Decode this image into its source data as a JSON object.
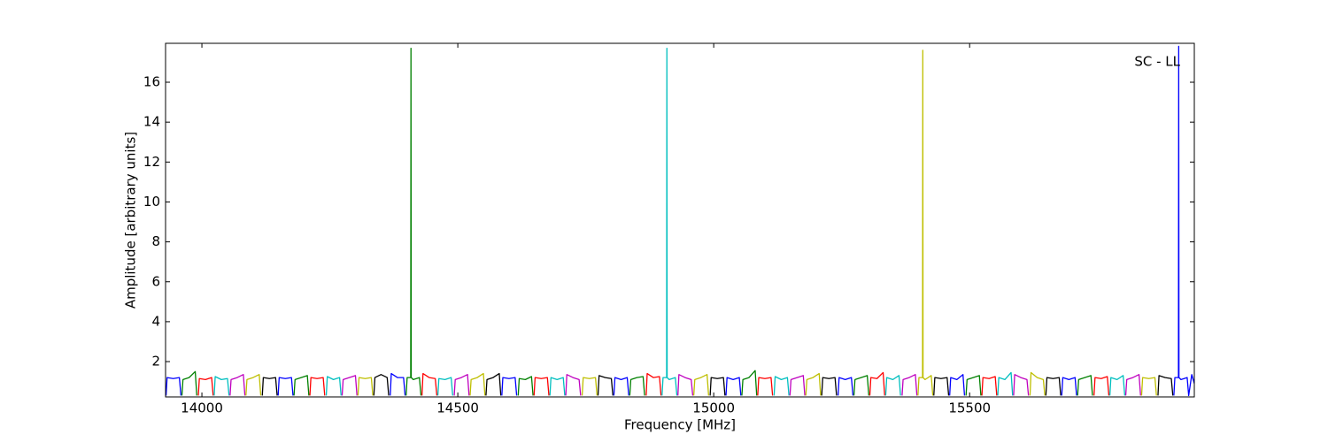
{
  "chart_data": {
    "type": "line",
    "xlabel": "Frequency [MHz]",
    "ylabel": "Amplitude [arbitrary units]",
    "annotation": "SC - LL",
    "xlim": [
      13929,
      15939
    ],
    "ylim": [
      0.23,
      17.95
    ],
    "xticks": [
      14000,
      14500,
      15000,
      15500
    ],
    "yticks": [
      2,
      4,
      6,
      8,
      10,
      12,
      14,
      16
    ],
    "grid": false,
    "series": [
      {
        "color": "#0000ff",
        "x": [
          13930,
          13932,
          13944,
          13956,
          13959
        ],
        "values": [
          0.3,
          1.2,
          1.15,
          1.2,
          0.3
        ]
      },
      {
        "color": "#008000",
        "x": [
          13961,
          13963,
          13975,
          13987,
          13990
        ],
        "values": [
          0.3,
          1.1,
          1.2,
          1.5,
          0.3
        ]
      },
      {
        "color": "#ff0000",
        "x": [
          13993,
          13995,
          14007,
          14019,
          14022
        ],
        "values": [
          0.3,
          1.15,
          1.1,
          1.2,
          0.3
        ]
      },
      {
        "color": "#00bfbf",
        "x": [
          14024,
          14026,
          14038,
          14050,
          14053
        ],
        "values": [
          0.3,
          1.25,
          1.1,
          1.15,
          0.3
        ]
      },
      {
        "color": "#bf00bf",
        "x": [
          14055,
          14057,
          14069,
          14081,
          14084
        ],
        "values": [
          0.3,
          1.1,
          1.2,
          1.35,
          0.3
        ]
      },
      {
        "color": "#bfbf00",
        "x": [
          14086,
          14088,
          14100,
          14112,
          14115
        ],
        "values": [
          0.3,
          1.1,
          1.2,
          1.35,
          0.3
        ]
      },
      {
        "color": "#000000",
        "x": [
          14118,
          14120,
          14132,
          14144,
          14147
        ],
        "values": [
          0.3,
          1.2,
          1.15,
          1.2,
          0.3
        ]
      },
      {
        "color": "#0000ff",
        "x": [
          14149,
          14151,
          14163,
          14175,
          14178
        ],
        "values": [
          0.3,
          1.2,
          1.15,
          1.2,
          0.3
        ]
      },
      {
        "color": "#008000",
        "x": [
          14180,
          14182,
          14194,
          14206,
          14209
        ],
        "values": [
          0.3,
          1.1,
          1.2,
          1.3,
          0.3
        ]
      },
      {
        "color": "#ff0000",
        "x": [
          14211,
          14213,
          14225,
          14237,
          14240
        ],
        "values": [
          0.3,
          1.2,
          1.15,
          1.2,
          0.3
        ]
      },
      {
        "color": "#00bfbf",
        "x": [
          14243,
          14245,
          14257,
          14269,
          14272
        ],
        "values": [
          0.3,
          1.25,
          1.1,
          1.2,
          0.3
        ]
      },
      {
        "color": "#bf00bf",
        "x": [
          14274,
          14276,
          14288,
          14300,
          14303
        ],
        "values": [
          0.3,
          1.1,
          1.2,
          1.3,
          0.3
        ]
      },
      {
        "color": "#bfbf00",
        "x": [
          14305,
          14307,
          14319,
          14331,
          14334
        ],
        "values": [
          0.3,
          1.2,
          1.15,
          1.2,
          0.3
        ]
      },
      {
        "color": "#000000",
        "x": [
          14336,
          14338,
          14350,
          14362,
          14365
        ],
        "values": [
          0.3,
          1.2,
          1.35,
          1.2,
          0.3
        ]
      },
      {
        "color": "#0000ff",
        "x": [
          14368,
          14370,
          14382,
          14394,
          14397
        ],
        "values": [
          0.3,
          1.4,
          1.2,
          1.2,
          0.3
        ]
      },
      {
        "color": "#008000",
        "x": [
          14399,
          14401,
          14408,
          14408.5,
          14409,
          14413,
          14425,
          14428
        ],
        "values": [
          0.3,
          1.2,
          1.2,
          17.7,
          1.2,
          1.1,
          1.2,
          0.3
        ]
      },
      {
        "color": "#ff0000",
        "x": [
          14430,
          14432,
          14444,
          14456,
          14459
        ],
        "values": [
          0.3,
          1.4,
          1.2,
          1.15,
          0.3
        ]
      },
      {
        "color": "#00bfbf",
        "x": [
          14461,
          14463,
          14475,
          14487,
          14490
        ],
        "values": [
          0.3,
          1.15,
          1.1,
          1.2,
          0.3
        ]
      },
      {
        "color": "#bf00bf",
        "x": [
          14493,
          14495,
          14507,
          14519,
          14522
        ],
        "values": [
          0.3,
          1.1,
          1.2,
          1.35,
          0.3
        ]
      },
      {
        "color": "#bfbf00",
        "x": [
          14524,
          14526,
          14538,
          14550,
          14553
        ],
        "values": [
          0.3,
          1.1,
          1.2,
          1.4,
          0.3
        ]
      },
      {
        "color": "#000000",
        "x": [
          14555,
          14557,
          14569,
          14581,
          14584
        ],
        "values": [
          0.3,
          1.1,
          1.2,
          1.4,
          0.3
        ]
      },
      {
        "color": "#0000ff",
        "x": [
          14586,
          14588,
          14600,
          14612,
          14615
        ],
        "values": [
          0.3,
          1.2,
          1.15,
          1.2,
          0.3
        ]
      },
      {
        "color": "#008000",
        "x": [
          14618,
          14620,
          14632,
          14644,
          14647
        ],
        "values": [
          0.3,
          1.15,
          1.1,
          1.25,
          0.3
        ]
      },
      {
        "color": "#ff0000",
        "x": [
          14649,
          14651,
          14663,
          14675,
          14678
        ],
        "values": [
          0.3,
          1.2,
          1.15,
          1.2,
          0.3
        ]
      },
      {
        "color": "#00bfbf",
        "x": [
          14680,
          14682,
          14694,
          14706,
          14709
        ],
        "values": [
          0.3,
          1.2,
          1.1,
          1.2,
          0.3
        ]
      },
      {
        "color": "#bf00bf",
        "x": [
          14711,
          14713,
          14725,
          14737,
          14740
        ],
        "values": [
          0.3,
          1.35,
          1.2,
          1.1,
          0.3
        ]
      },
      {
        "color": "#bfbf00",
        "x": [
          14743,
          14745,
          14757,
          14769,
          14772
        ],
        "values": [
          0.3,
          1.2,
          1.15,
          1.2,
          0.3
        ]
      },
      {
        "color": "#000000",
        "x": [
          14774,
          14776,
          14788,
          14800,
          14803
        ],
        "values": [
          0.3,
          1.3,
          1.2,
          1.15,
          0.3
        ]
      },
      {
        "color": "#0000ff",
        "x": [
          14805,
          14807,
          14819,
          14831,
          14834
        ],
        "values": [
          0.3,
          1.2,
          1.1,
          1.2,
          0.3
        ]
      },
      {
        "color": "#008000",
        "x": [
          14836,
          14838,
          14850,
          14862,
          14865
        ],
        "values": [
          0.3,
          1.1,
          1.2,
          1.25,
          0.3
        ]
      },
      {
        "color": "#ff0000",
        "x": [
          14868,
          14870,
          14882,
          14894,
          14897
        ],
        "values": [
          0.3,
          1.4,
          1.2,
          1.25,
          0.3
        ]
      },
      {
        "color": "#00bfbf",
        "x": [
          14899,
          14901,
          14908,
          14908.5,
          14909,
          14913,
          14925,
          14928
        ],
        "values": [
          0.3,
          1.2,
          1.2,
          17.7,
          1.2,
          1.1,
          1.2,
          0.3
        ]
      },
      {
        "color": "#bf00bf",
        "x": [
          14930,
          14932,
          14944,
          14956,
          14959
        ],
        "values": [
          0.3,
          1.35,
          1.2,
          1.1,
          0.3
        ]
      },
      {
        "color": "#bfbf00",
        "x": [
          14961,
          14963,
          14975,
          14987,
          14990
        ],
        "values": [
          0.3,
          1.1,
          1.2,
          1.35,
          0.3
        ]
      },
      {
        "color": "#000000",
        "x": [
          14993,
          14995,
          15007,
          15019,
          15022
        ],
        "values": [
          0.3,
          1.2,
          1.15,
          1.2,
          0.3
        ]
      },
      {
        "color": "#0000ff",
        "x": [
          15024,
          15026,
          15038,
          15050,
          15053
        ],
        "values": [
          0.3,
          1.2,
          1.1,
          1.2,
          0.3
        ]
      },
      {
        "color": "#008000",
        "x": [
          15055,
          15057,
          15069,
          15081,
          15084
        ],
        "values": [
          0.3,
          1.1,
          1.2,
          1.55,
          0.3
        ]
      },
      {
        "color": "#ff0000",
        "x": [
          15086,
          15088,
          15100,
          15112,
          15115
        ],
        "values": [
          0.3,
          1.2,
          1.15,
          1.2,
          0.3
        ]
      },
      {
        "color": "#00bfbf",
        "x": [
          15118,
          15120,
          15132,
          15144,
          15147
        ],
        "values": [
          0.3,
          1.25,
          1.1,
          1.2,
          0.3
        ]
      },
      {
        "color": "#bf00bf",
        "x": [
          15149,
          15151,
          15163,
          15175,
          15178
        ],
        "values": [
          0.3,
          1.1,
          1.2,
          1.3,
          0.3
        ]
      },
      {
        "color": "#bfbf00",
        "x": [
          15180,
          15182,
          15194,
          15206,
          15209
        ],
        "values": [
          0.3,
          1.1,
          1.2,
          1.4,
          0.3
        ]
      },
      {
        "color": "#000000",
        "x": [
          15211,
          15213,
          15225,
          15237,
          15240
        ],
        "values": [
          0.3,
          1.2,
          1.15,
          1.2,
          0.3
        ]
      },
      {
        "color": "#0000ff",
        "x": [
          15243,
          15245,
          15257,
          15269,
          15272
        ],
        "values": [
          0.3,
          1.2,
          1.1,
          1.2,
          0.3
        ]
      },
      {
        "color": "#008000",
        "x": [
          15274,
          15276,
          15288,
          15300,
          15303
        ],
        "values": [
          0.3,
          1.1,
          1.2,
          1.3,
          0.3
        ]
      },
      {
        "color": "#ff0000",
        "x": [
          15305,
          15307,
          15319,
          15331,
          15334
        ],
        "values": [
          0.3,
          1.2,
          1.15,
          1.45,
          0.3
        ]
      },
      {
        "color": "#00bfbf",
        "x": [
          15336,
          15338,
          15350,
          15362,
          15365
        ],
        "values": [
          0.3,
          1.2,
          1.1,
          1.3,
          0.3
        ]
      },
      {
        "color": "#bf00bf",
        "x": [
          15368,
          15370,
          15382,
          15394,
          15397
        ],
        "values": [
          0.3,
          1.1,
          1.2,
          1.35,
          0.3
        ]
      },
      {
        "color": "#bfbf00",
        "x": [
          15399,
          15401,
          15408,
          15408.5,
          15409,
          15413,
          15425,
          15428
        ],
        "values": [
          0.3,
          1.2,
          1.2,
          17.6,
          1.2,
          1.1,
          1.3,
          0.3
        ]
      },
      {
        "color": "#000000",
        "x": [
          15430,
          15432,
          15444,
          15456,
          15459
        ],
        "values": [
          0.3,
          1.2,
          1.15,
          1.2,
          0.3
        ]
      },
      {
        "color": "#0000ff",
        "x": [
          15461,
          15463,
          15475,
          15487,
          15490
        ],
        "values": [
          0.3,
          1.2,
          1.1,
          1.35,
          0.3
        ]
      },
      {
        "color": "#008000",
        "x": [
          15493,
          15495,
          15507,
          15519,
          15522
        ],
        "values": [
          0.3,
          1.1,
          1.2,
          1.3,
          0.3
        ]
      },
      {
        "color": "#ff0000",
        "x": [
          15524,
          15526,
          15538,
          15550,
          15553
        ],
        "values": [
          0.3,
          1.2,
          1.15,
          1.25,
          0.3
        ]
      },
      {
        "color": "#00bfbf",
        "x": [
          15555,
          15557,
          15569,
          15581,
          15584
        ],
        "values": [
          0.3,
          1.2,
          1.1,
          1.45,
          0.3
        ]
      },
      {
        "color": "#bf00bf",
        "x": [
          15586,
          15588,
          15600,
          15612,
          15615
        ],
        "values": [
          0.3,
          1.35,
          1.2,
          1.1,
          0.3
        ]
      },
      {
        "color": "#bfbf00",
        "x": [
          15618,
          15620,
          15632,
          15644,
          15647
        ],
        "values": [
          0.3,
          1.45,
          1.2,
          1.1,
          0.3
        ]
      },
      {
        "color": "#000000",
        "x": [
          15649,
          15651,
          15663,
          15675,
          15678
        ],
        "values": [
          0.3,
          1.2,
          1.15,
          1.2,
          0.3
        ]
      },
      {
        "color": "#0000ff",
        "x": [
          15680,
          15682,
          15694,
          15706,
          15709
        ],
        "values": [
          0.3,
          1.2,
          1.1,
          1.2,
          0.3
        ]
      },
      {
        "color": "#008000",
        "x": [
          15711,
          15713,
          15725,
          15737,
          15740
        ],
        "values": [
          0.3,
          1.1,
          1.2,
          1.3,
          0.3
        ]
      },
      {
        "color": "#ff0000",
        "x": [
          15743,
          15745,
          15757,
          15769,
          15772
        ],
        "values": [
          0.3,
          1.2,
          1.15,
          1.25,
          0.3
        ]
      },
      {
        "color": "#00bfbf",
        "x": [
          15774,
          15776,
          15788,
          15800,
          15803
        ],
        "values": [
          0.3,
          1.2,
          1.1,
          1.3,
          0.3
        ]
      },
      {
        "color": "#bf00bf",
        "x": [
          15805,
          15807,
          15819,
          15831,
          15834
        ],
        "values": [
          0.3,
          1.1,
          1.2,
          1.35,
          0.3
        ]
      },
      {
        "color": "#bfbf00",
        "x": [
          15836,
          15838,
          15850,
          15862,
          15865
        ],
        "values": [
          0.3,
          1.2,
          1.15,
          1.2,
          0.3
        ]
      },
      {
        "color": "#000000",
        "x": [
          15868,
          15870,
          15882,
          15894,
          15897
        ],
        "values": [
          0.3,
          1.3,
          1.2,
          1.15,
          0.3
        ]
      },
      {
        "color": "#0000ff",
        "x": [
          15899,
          15901,
          15908,
          15908.5,
          15909,
          15913,
          15925,
          15928,
          15934,
          15939
        ],
        "values": [
          0.3,
          1.2,
          1.2,
          17.8,
          1.2,
          1.1,
          1.2,
          0.3,
          1.35,
          0.9
        ]
      }
    ]
  }
}
